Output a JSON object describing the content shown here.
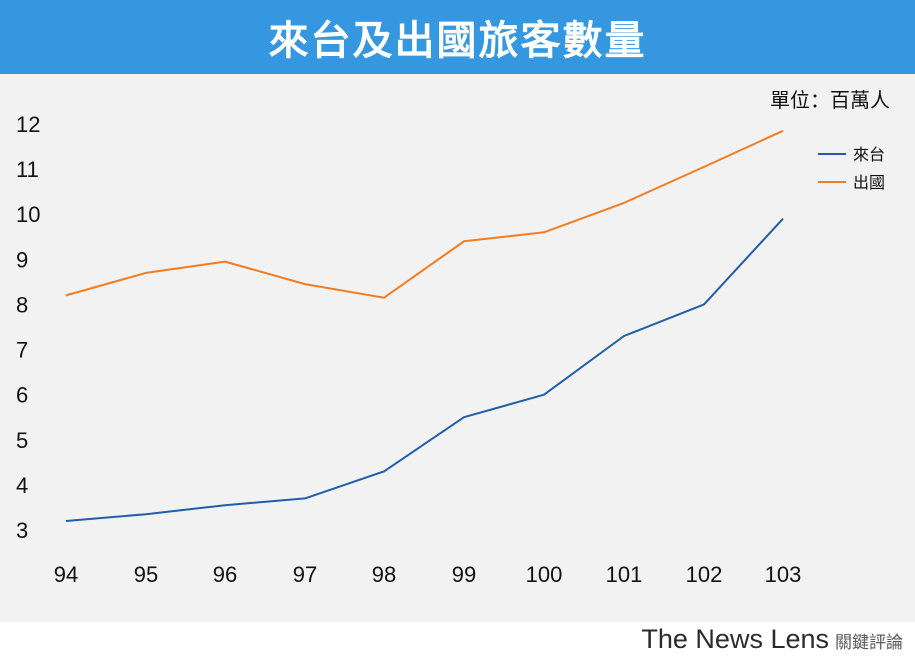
{
  "title": "來台及出國旅客數量",
  "unit_label": "單位：百萬人",
  "brand": {
    "name": "The News Lens",
    "name_zh": "關鍵評論"
  },
  "colors": {
    "title_bg": "#3597e0",
    "inbound": "#1f5fa8",
    "outbound": "#f47c20",
    "plot_bg": "#f2f2f2"
  },
  "chart_data": {
    "type": "line",
    "title": "來台及出國旅客數量",
    "xlabel": "",
    "ylabel": "",
    "unit": "單位：百萬人",
    "categories": [
      "94",
      "95",
      "96",
      "97",
      "98",
      "99",
      "100",
      "101",
      "102",
      "103"
    ],
    "ylim": [
      3,
      12
    ],
    "yticks": [
      3,
      4,
      5,
      6,
      7,
      8,
      9,
      10,
      11,
      12
    ],
    "grid": false,
    "legend": "top-right",
    "series": [
      {
        "name": "來台",
        "color": "#1f5fa8",
        "values": [
          3.2,
          3.35,
          3.55,
          3.7,
          4.3,
          5.5,
          6.0,
          7.3,
          8.0,
          9.9
        ]
      },
      {
        "name": "出國",
        "color": "#f47c20",
        "values": [
          8.2,
          8.7,
          8.95,
          8.45,
          8.15,
          9.4,
          9.6,
          10.25,
          11.05,
          11.85
        ]
      }
    ]
  }
}
